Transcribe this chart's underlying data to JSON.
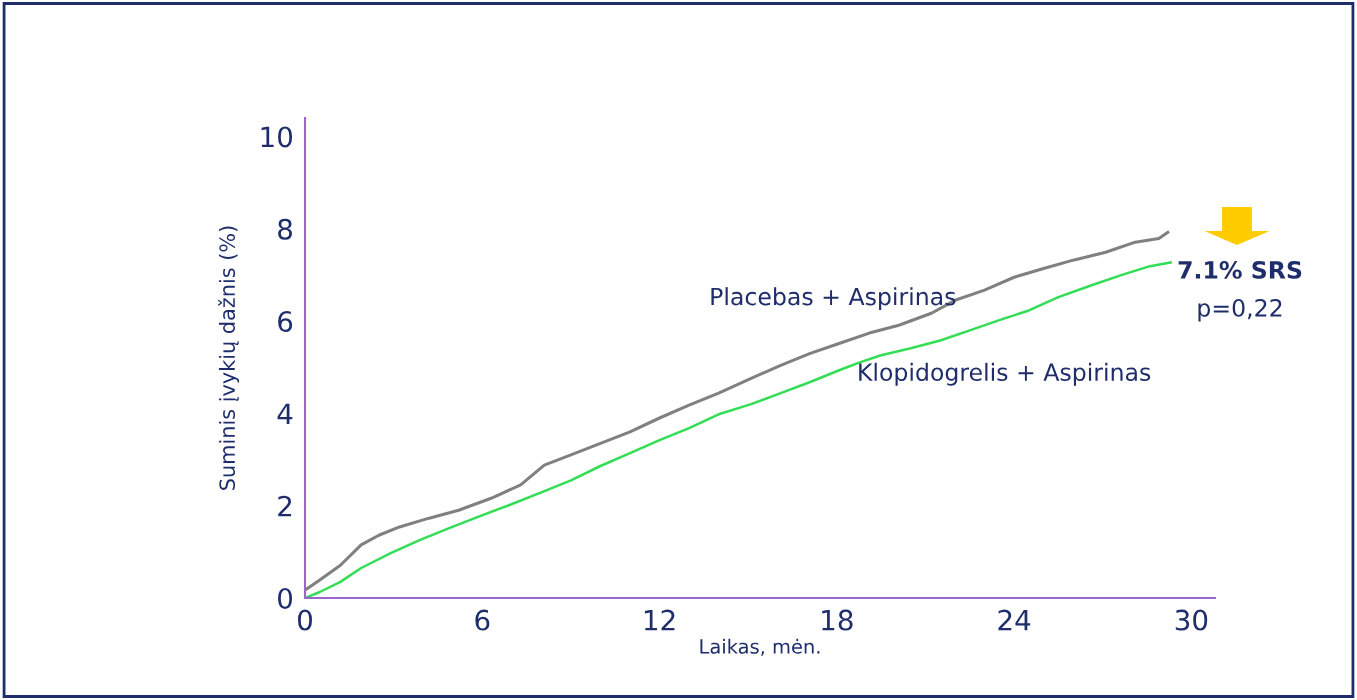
{
  "chart_data": {
    "type": "line",
    "xlabel": "Laikas, mėn.",
    "ylabel": "Suminis įvykių dažnis (%)",
    "xlim": [
      0,
      30.8
    ],
    "ylim": [
      0,
      10.4
    ],
    "xticks": [
      0,
      6,
      12,
      18,
      24,
      30
    ],
    "yticks": [
      0,
      2,
      4,
      6,
      8,
      10
    ],
    "grid": false,
    "legend": false,
    "annotations": [
      "7.1% SRS",
      "p=0,22"
    ],
    "series": [
      {
        "name": "Placebas + Aspirinas",
        "color": "#808080",
        "x": [
          0,
          0.5,
          1.2,
          1.9,
          2.5,
          3.2,
          4.2,
          5.2,
          6.3,
          7.3,
          8.1,
          9.0,
          10,
          11,
          12,
          13,
          14,
          15.1,
          16.1,
          17.1,
          18.1,
          19.1,
          20.1,
          21.2,
          22,
          23,
          24,
          25,
          26,
          27.1,
          28.1,
          28.9,
          29.2
        ],
        "values": [
          0.17,
          0.39,
          0.71,
          1.15,
          1.36,
          1.54,
          1.73,
          1.9,
          2.16,
          2.45,
          2.88,
          3.1,
          3.35,
          3.6,
          3.9,
          4.18,
          4.44,
          4.76,
          5.04,
          5.3,
          5.52,
          5.74,
          5.91,
          6.17,
          6.45,
          6.67,
          6.95,
          7.14,
          7.32,
          7.49,
          7.71,
          7.79,
          7.92
        ]
      },
      {
        "name": "Klopidogrelis + Aspirinas",
        "color": "#33dd55",
        "x": [
          0,
          0.5,
          1.2,
          1.9,
          2.9,
          3.9,
          4.9,
          5.9,
          6.9,
          8,
          9,
          10,
          11,
          12,
          13,
          14,
          15.1,
          16.1,
          17.1,
          18.1,
          18.8,
          19.5,
          20.5,
          21.5,
          22.5,
          23.5,
          24.5,
          25.5,
          26.6,
          27.6,
          28.6,
          29.3
        ],
        "values": [
          0,
          0.13,
          0.35,
          0.65,
          0.97,
          1.26,
          1.52,
          1.77,
          2.01,
          2.29,
          2.55,
          2.86,
          3.14,
          3.42,
          3.68,
          3.98,
          4.2,
          4.44,
          4.68,
          4.94,
          5.11,
          5.26,
          5.41,
          5.58,
          5.8,
          6.02,
          6.23,
          6.52,
          6.77,
          6.99,
          7.19,
          7.27
        ]
      }
    ]
  }
}
